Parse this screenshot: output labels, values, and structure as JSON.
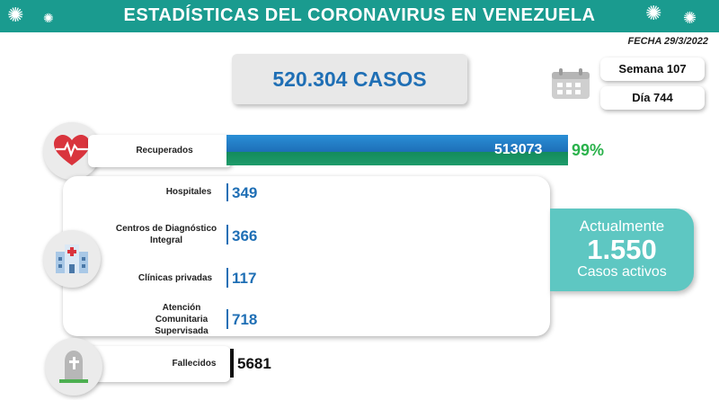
{
  "header": {
    "title": "ESTADÍSTICAS DEL CORONAVIRUS EN VENEZUELA",
    "date": "FECHA 29/3/2022"
  },
  "cases": "520.304 CASOS",
  "week": "Semana 107",
  "day": "Día 744",
  "recuperados": {
    "label": "Recuperados",
    "value_text": "513073",
    "pct_text": "99%"
  },
  "hospitales": [
    {
      "label": "Hospitales",
      "value_text": "349"
    },
    {
      "label": "Centros de Diagnóstico Integral",
      "value_text": "366"
    },
    {
      "label": "Clínicas privadas",
      "value_text": "117"
    },
    {
      "label": "Atención Comunitaria Supervisada",
      "value_text": "718"
    }
  ],
  "activos": {
    "top": "Actualmente",
    "number": "1.550",
    "bottom": "Casos activos"
  },
  "fallecidos": {
    "label": "Fallecidos",
    "value_text": "5681"
  },
  "colors": {
    "header": "#1a9b8f",
    "blue": "#1f6fb5",
    "green": "#2bb24c",
    "teal": "#5ec7c2"
  },
  "chart_data": {
    "type": "bar",
    "categories": [
      "Recuperados",
      "Hospitales",
      "Centros de Diagnóstico Integral",
      "Clínicas privadas",
      "Atención Comunitaria Supervisada",
      "Fallecidos"
    ],
    "values": [
      513073,
      349,
      366,
      117,
      718,
      5681
    ],
    "total_cases": 520304,
    "active_cases": 1550,
    "recovered_pct": 99
  }
}
